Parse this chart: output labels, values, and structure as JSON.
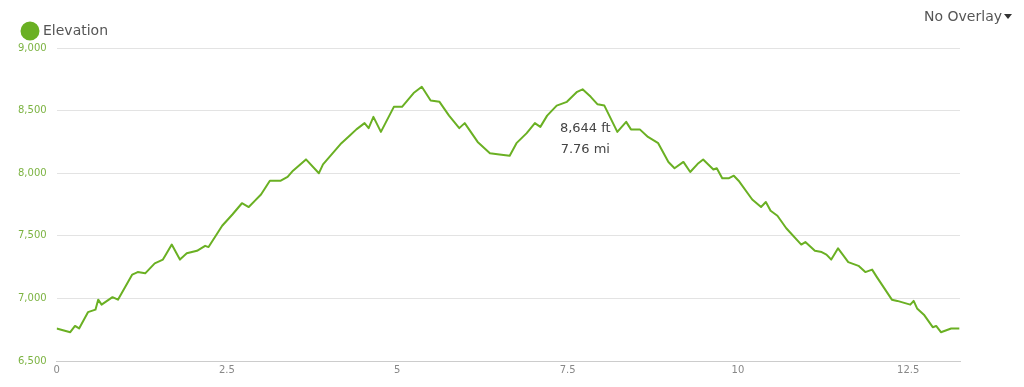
{
  "chart_data": {
    "type": "line",
    "x": [
      0.0,
      0.2,
      0.27,
      0.33,
      0.46,
      0.57,
      0.61,
      0.66,
      0.82,
      0.9,
      1.11,
      1.19,
      1.3,
      1.44,
      1.56,
      1.69,
      1.81,
      1.91,
      2.06,
      2.18,
      2.23,
      2.43,
      2.58,
      2.72,
      2.82,
      3.0,
      3.13,
      3.29,
      3.39,
      3.47,
      3.66,
      3.85,
      3.91,
      4.18,
      4.3,
      4.4,
      4.52,
      4.58,
      4.65,
      4.76,
      4.95,
      5.07,
      5.24,
      5.36,
      5.49,
      5.62,
      5.76,
      5.91,
      5.99,
      6.18,
      6.36,
      6.5,
      6.65,
      6.75,
      6.9,
      7.02,
      7.1,
      7.2,
      7.34,
      7.49,
      7.64,
      7.72,
      7.84,
      7.94,
      8.04,
      8.23,
      8.36,
      8.43,
      8.56,
      8.68,
      8.83,
      8.98,
      9.07,
      9.2,
      9.3,
      9.42,
      9.49,
      9.64,
      9.69,
      9.77,
      9.87,
      9.94,
      10.01,
      10.21,
      10.34,
      10.41,
      10.48,
      10.58,
      10.71,
      10.93,
      10.99,
      11.13,
      11.23,
      11.3,
      11.37,
      11.47,
      11.62,
      11.77,
      11.87,
      11.97,
      12.04,
      12.26,
      12.34,
      12.53,
      12.58,
      12.63,
      12.73,
      12.86,
      12.91,
      12.98,
      13.13,
      13.25
    ],
    "series": [
      {
        "name": "Elevation",
        "color": "#6ab023",
        "values": [
          6760,
          6730,
          6780,
          6760,
          6890,
          6910,
          6990,
          6950,
          7010,
          6990,
          7190,
          7210,
          7200,
          7280,
          7310,
          7430,
          7310,
          7360,
          7380,
          7420,
          7410,
          7580,
          7670,
          7760,
          7730,
          7830,
          7940,
          7940,
          7970,
          8020,
          8110,
          8000,
          8070,
          8240,
          8300,
          8350,
          8400,
          8360,
          8450,
          8330,
          8530,
          8530,
          8640,
          8690,
          8580,
          8570,
          8460,
          8360,
          8400,
          8250,
          8160,
          8150,
          8140,
          8240,
          8320,
          8400,
          8370,
          8460,
          8540,
          8570,
          8650,
          8670,
          8610,
          8550,
          8540,
          8330,
          8410,
          8350,
          8350,
          8290,
          8240,
          8090,
          8040,
          8090,
          8010,
          8080,
          8110,
          8030,
          8040,
          7960,
          7960,
          7980,
          7940,
          7790,
          7730,
          7770,
          7700,
          7660,
          7560,
          7430,
          7450,
          7380,
          7370,
          7350,
          7310,
          7400,
          7290,
          7260,
          7210,
          7230,
          7170,
          6990,
          6980,
          6950,
          6980,
          6920,
          6870,
          6770,
          6780,
          6730,
          6760,
          6760
        ]
      }
    ],
    "xlim": [
      0,
      13.26
    ],
    "xticks": [
      0,
      2.5,
      5,
      7.5,
      10,
      12.5
    ],
    "ylim": [
      6500,
      9000
    ],
    "yticks": [
      {
        "value": 6500,
        "label": "6,500"
      },
      {
        "value": 7000,
        "label": "7,000"
      },
      {
        "value": 7500,
        "label": "7,500"
      },
      {
        "value": 8000,
        "label": "8,000"
      },
      {
        "value": 8500,
        "label": "8,500"
      },
      {
        "value": 9000,
        "label": "9,000"
      }
    ],
    "grid": "y",
    "legend": "top left",
    "marker": "none",
    "line_style": "solid",
    "annotations": [
      {
        "text": "8,644 ft\n7.76 mi",
        "x": 7.76,
        "y": 8644
      },
      "No Overlay"
    ]
  }
}
